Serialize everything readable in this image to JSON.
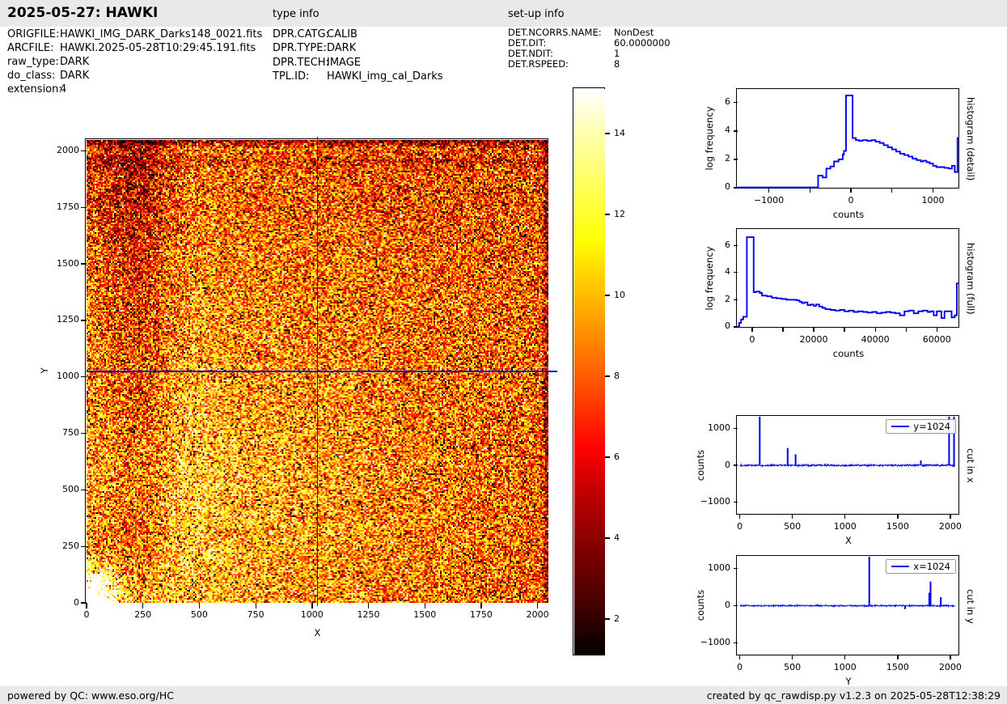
{
  "header": {
    "title": "2025-05-27: HAWKI",
    "type_info_title": "type info",
    "setup_info_title": "set-up info"
  },
  "file_info": {
    "rows": [
      {
        "label": "ORIGFILE:",
        "value": "HAWKI_IMG_DARK_Darks148_0021.fits"
      },
      {
        "label": "ARCFILE:",
        "value": "HAWKI.2025-05-28T10:29:45.191.fits"
      },
      {
        "label": "raw_type:",
        "value": "DARK"
      },
      {
        "label": "do_class:",
        "value": "DARK"
      },
      {
        "label": "extension:",
        "value": "4"
      }
    ]
  },
  "type_info": {
    "rows": [
      {
        "label": "DPR.CATG:",
        "value": "CALIB"
      },
      {
        "label": "DPR.TYPE:",
        "value": "DARK"
      },
      {
        "label": "DPR.TECH:",
        "value": "IMAGE"
      },
      {
        "label": "TPL.ID:",
        "value": "HAWKI_img_cal_Darks"
      }
    ]
  },
  "setup_info": {
    "rows": [
      {
        "label": "DET.NCORRS.NAME:",
        "value": "NonDest"
      },
      {
        "label": "DET.DIT:",
        "value": "60.0000000"
      },
      {
        "label": "DET.NDIT:",
        "value": "1"
      },
      {
        "label": "DET.RSPEED:",
        "value": "8"
      }
    ]
  },
  "footer": {
    "left": "powered by QC: www.eso.org/HC",
    "right": "created by qc_rawdisp.py v1.2.3 on 2025-05-28T12:38:29"
  },
  "colors": {
    "line_blue": "#0000ee",
    "spine": "#000000",
    "bar_bg": "#e9e9e9"
  },
  "chart_data": [
    {
      "id": "main_image",
      "type": "heatmap",
      "xlabel": "X",
      "ylabel": "Y",
      "xlim": [
        0,
        2048
      ],
      "ylim": [
        0,
        2048
      ],
      "xticks": [
        0,
        250,
        500,
        750,
        1000,
        1250,
        1500,
        1750,
        2000
      ],
      "yticks": [
        0,
        250,
        500,
        750,
        1000,
        1250,
        1500,
        1750,
        2000
      ],
      "colormap": "hot",
      "vmin": 1.1,
      "vmax": 15.1,
      "colorbar_ticks": [
        2,
        4,
        6,
        8,
        10,
        12,
        14
      ],
      "crosshair_x": 1024,
      "crosshair_y": 1024,
      "features": {
        "bright_blob_corner_xy": [
          10,
          10
        ],
        "dark_column_x": 235,
        "dark_topleft_corner_xy": [
          150,
          1900
        ],
        "dark_row_y": 1952,
        "dark_top_edge_y": 2010,
        "dark_right_edge_x": 2015
      }
    },
    {
      "id": "hist_detail",
      "type": "step-histogram",
      "xlabel": "counts",
      "ylabel": "log frequency",
      "right_label": "histogram (detail)",
      "xlim": [
        -1380,
        1320
      ],
      "ylim": [
        -0.06,
        6.9
      ],
      "xticks_major": [
        -1000,
        0,
        1000
      ],
      "xticks_minor": [
        -500,
        500
      ],
      "yticks": [
        0,
        2,
        4,
        6
      ],
      "steps": [
        [
          -1380,
          0.02
        ],
        [
          -400,
          0.85
        ],
        [
          -345,
          0.72
        ],
        [
          -300,
          1.35
        ],
        [
          -250,
          1.5
        ],
        [
          -205,
          1.85
        ],
        [
          -150,
          2.0
        ],
        [
          -100,
          2.35
        ],
        [
          -85,
          2.6
        ],
        [
          -60,
          6.5
        ],
        [
          20,
          3.5
        ],
        [
          60,
          3.35
        ],
        [
          100,
          3.3
        ],
        [
          140,
          3.35
        ],
        [
          200,
          3.3
        ],
        [
          250,
          3.35
        ],
        [
          300,
          3.25
        ],
        [
          350,
          3.15
        ],
        [
          400,
          3.0
        ],
        [
          450,
          2.85
        ],
        [
          500,
          2.7
        ],
        [
          550,
          2.55
        ],
        [
          600,
          2.4
        ],
        [
          650,
          2.3
        ],
        [
          700,
          2.2
        ],
        [
          750,
          2.05
        ],
        [
          800,
          1.95
        ],
        [
          850,
          1.85
        ],
        [
          880,
          1.9
        ],
        [
          920,
          1.8
        ],
        [
          960,
          1.7
        ],
        [
          1000,
          1.55
        ],
        [
          1040,
          1.45
        ],
        [
          1090,
          1.45
        ],
        [
          1140,
          1.4
        ],
        [
          1190,
          1.35
        ],
        [
          1230,
          1.55
        ],
        [
          1265,
          1.1
        ],
        [
          1298,
          3.5
        ]
      ]
    },
    {
      "id": "hist_full",
      "type": "step-histogram",
      "xlabel": "counts",
      "ylabel": "log frequency",
      "right_label": "histogram (full)",
      "xlim": [
        -4700,
        67300
      ],
      "ylim": [
        -0.06,
        7.14
      ],
      "xticks_major": [
        0,
        20000,
        40000,
        60000
      ],
      "xticks_minor": [
        10000,
        30000,
        50000
      ],
      "yticks": [
        0,
        2,
        4,
        6
      ],
      "steps": [
        [
          -4700,
          0.02
        ],
        [
          -4200,
          0.3
        ],
        [
          -3600,
          0.55
        ],
        [
          -2900,
          0.75
        ],
        [
          -1700,
          6.6
        ],
        [
          500,
          2.55
        ],
        [
          1300,
          2.6
        ],
        [
          2500,
          2.5
        ],
        [
          3200,
          2.3
        ],
        [
          4800,
          2.25
        ],
        [
          6400,
          2.15
        ],
        [
          8000,
          2.1
        ],
        [
          9600,
          2.05
        ],
        [
          11200,
          2.0
        ],
        [
          12800,
          2.0
        ],
        [
          14400,
          1.95
        ],
        [
          15400,
          1.85
        ],
        [
          16200,
          1.75
        ],
        [
          17000,
          1.8
        ],
        [
          18000,
          1.6
        ],
        [
          19000,
          1.65
        ],
        [
          20000,
          1.55
        ],
        [
          20800,
          1.65
        ],
        [
          21800,
          1.5
        ],
        [
          22800,
          1.4
        ],
        [
          23800,
          1.3
        ],
        [
          25500,
          1.25
        ],
        [
          27000,
          1.2
        ],
        [
          28500,
          1.25
        ],
        [
          30000,
          1.15
        ],
        [
          31500,
          1.2
        ],
        [
          33000,
          1.1
        ],
        [
          34500,
          1.15
        ],
        [
          36000,
          1.1
        ],
        [
          37500,
          1.05
        ],
        [
          39000,
          1.1
        ],
        [
          40500,
          1.0
        ],
        [
          42000,
          1.05
        ],
        [
          43500,
          1.1
        ],
        [
          45000,
          1.05
        ],
        [
          46500,
          1.0
        ],
        [
          48000,
          0.85
        ],
        [
          49500,
          1.15
        ],
        [
          51000,
          1.2
        ],
        [
          52500,
          1.0
        ],
        [
          54000,
          1.15
        ],
        [
          55500,
          1.2
        ],
        [
          57000,
          1.1
        ],
        [
          58000,
          1.15
        ],
        [
          59000,
          0.85
        ],
        [
          60000,
          1.15
        ],
        [
          61500,
          0.65
        ],
        [
          62500,
          1.15
        ],
        [
          64000,
          1.15
        ],
        [
          64800,
          0.7
        ],
        [
          65800,
          0.85
        ],
        [
          66500,
          3.2
        ]
      ]
    },
    {
      "id": "cut_x",
      "type": "line",
      "legend": "y=1024",
      "xlabel": "X",
      "ylabel": "counts",
      "right_label": "cut in x",
      "xlim": [
        -20,
        2085
      ],
      "ylim": [
        -1340,
        1320
      ],
      "data_x_range": [
        0,
        2048
      ],
      "xticks_major": [
        0,
        500,
        1000,
        1500,
        2000
      ],
      "yticks": [
        -1000,
        0,
        1000
      ],
      "noise_amp": 22,
      "spikes": [
        [
          190,
          2000
        ],
        [
          455,
          470
        ],
        [
          530,
          300
        ],
        [
          1720,
          130
        ],
        [
          1988,
          2000
        ],
        [
          2035,
          2000
        ]
      ]
    },
    {
      "id": "cut_y",
      "type": "line",
      "legend": "x=1024",
      "xlabel": "Y",
      "ylabel": "counts",
      "right_label": "cut in y",
      "xlim": [
        -20,
        2085
      ],
      "ylim": [
        -1340,
        1320
      ],
      "data_x_range": [
        0,
        2048
      ],
      "xticks_major": [
        0,
        500,
        1000,
        1500,
        2000
      ],
      "yticks": [
        -1000,
        0,
        1000
      ],
      "noise_amp": 18,
      "spikes": [
        [
          1230,
          2000
        ],
        [
          1570,
          -90
        ],
        [
          1800,
          350
        ],
        [
          1812,
          650
        ],
        [
          1910,
          230
        ]
      ]
    }
  ]
}
